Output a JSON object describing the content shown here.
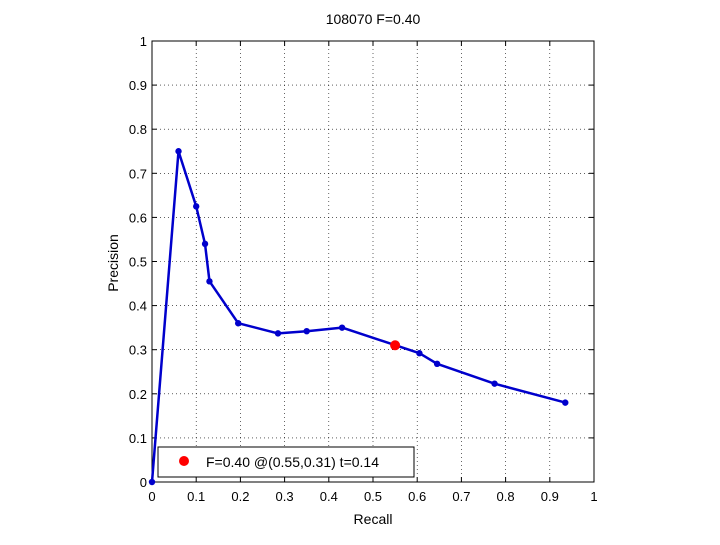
{
  "chart_data": {
    "type": "line",
    "title": "108070 F=0.40",
    "xlabel": "Recall",
    "ylabel": "Precision",
    "xlim": [
      0,
      1
    ],
    "ylim": [
      0,
      1
    ],
    "xticks": [
      "0",
      "0.1",
      "0.2",
      "0.3",
      "0.4",
      "0.5",
      "0.6",
      "0.7",
      "0.8",
      "0.9",
      "1"
    ],
    "yticks": [
      "0",
      "0.1",
      "0.2",
      "0.3",
      "0.4",
      "0.5",
      "0.6",
      "0.7",
      "0.8",
      "0.9",
      "1"
    ],
    "grid": true,
    "grid_style": "dotted",
    "legend_position": "bottom-left",
    "series": [
      {
        "color": "#0000cc",
        "marker": "circle",
        "x": [
          0.0,
          0.06,
          0.1,
          0.12,
          0.13,
          0.195,
          0.285,
          0.35,
          0.43,
          0.605,
          0.645,
          0.775,
          0.935
        ],
        "y": [
          0.0,
          0.75,
          0.625,
          0.54,
          0.455,
          0.36,
          0.337,
          0.342,
          0.35,
          0.292,
          0.268,
          0.223,
          0.18
        ]
      }
    ],
    "highlight": {
      "x": 0.55,
      "y": 0.31,
      "color": "#ff0000",
      "legend_label": "F=0.40 @(0.55,0.31) t=0.14"
    }
  }
}
